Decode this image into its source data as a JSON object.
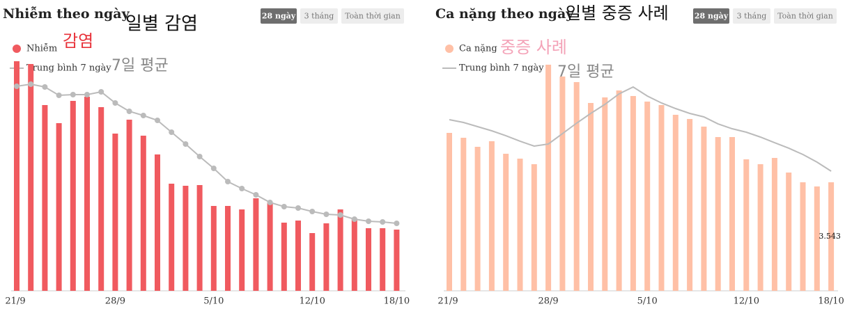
{
  "chart_data": [
    {
      "type": "bar",
      "title": "Nhiễm theo ngày",
      "annotations": [
        {
          "text": "일별 감염",
          "color": "#111111"
        },
        {
          "text": "감염",
          "color": "#e8323a"
        },
        {
          "text": "7일 평균",
          "color": "#888888"
        }
      ],
      "buttons": [
        "28 ngày",
        "3 tháng",
        "Toàn thời gian"
      ],
      "categories": [
        "21/9",
        null,
        null,
        null,
        null,
        null,
        null,
        "28/9",
        null,
        null,
        null,
        null,
        null,
        null,
        "5/10",
        null,
        null,
        null,
        null,
        null,
        null,
        "12/10",
        null,
        null,
        null,
        null,
        null,
        "18/10"
      ],
      "ylim": [
        0,
        13520
      ],
      "series": [
        {
          "name": "Nhiễm",
          "type": "bar",
          "color": "#f05a5f",
          "values": [
            13200,
            13040,
            10680,
            9640,
            10920,
            11160,
            10560,
            9040,
            9840,
            8920,
            7840,
            6160,
            6040,
            6080,
            4880,
            4880,
            4680,
            5320,
            5080,
            3920,
            4040,
            3320,
            3880,
            4680,
            4160,
            3600,
            3600,
            3520
          ]
        },
        {
          "name": "Trung bình 7 ngày",
          "type": "line",
          "color": "#bbbbbb",
          "markers": true,
          "values": [
            11760,
            11880,
            11720,
            11240,
            11280,
            11280,
            11440,
            10800,
            10320,
            10080,
            9800,
            9120,
            8440,
            7720,
            7040,
            6280,
            5880,
            5520,
            5080,
            4840,
            4760,
            4560,
            4400,
            4360,
            4120,
            4000,
            3960,
            3880
          ]
        }
      ]
    },
    {
      "type": "bar",
      "title": "Ca nặng theo ngày",
      "annotations": [
        {
          "text": "일별 중증 사례",
          "color": "#111111"
        },
        {
          "text": "중증 사례",
          "color": "#f4a3b8"
        },
        {
          "text": "7일 평균",
          "color": "#888888"
        }
      ],
      "buttons": [
        "28 ngày",
        "3 tháng",
        "Toàn thời gian"
      ],
      "categories": [
        "21/9",
        null,
        null,
        null,
        null,
        null,
        null,
        "28/9",
        null,
        null,
        null,
        null,
        null,
        null,
        "5/10",
        null,
        null,
        null,
        null,
        null,
        null,
        "12/10",
        null,
        null,
        null,
        null,
        null,
        "18/10"
      ],
      "ylim": [
        0,
        7676
      ],
      "series": [
        {
          "name": "Ca nặng",
          "type": "bar",
          "color": "#ffc0a6",
          "values": [
            5155,
            4996,
            4701,
            4883,
            4474,
            4315,
            4133,
            7381,
            6995,
            6813,
            6132,
            6313,
            6540,
            6359,
            6177,
            6064,
            5746,
            5609,
            5360,
            5019,
            5019,
            4292,
            4133,
            4338,
            3861,
            3543,
            3407,
            3543
          ],
          "value_labels": [
            null,
            null,
            null,
            null,
            null,
            null,
            null,
            null,
            null,
            null,
            null,
            null,
            null,
            null,
            null,
            null,
            null,
            null,
            null,
            null,
            null,
            null,
            null,
            null,
            null,
            null,
            null,
            "3.543"
          ]
        },
        {
          "name": "Trung bình 7 ngày",
          "type": "line",
          "color": "#bbbbbb",
          "markers": false,
          "values": [
            5587,
            5496,
            5360,
            5223,
            5064,
            4883,
            4724,
            4792,
            5132,
            5473,
            5791,
            6086,
            6427,
            6654,
            6359,
            6132,
            5950,
            5791,
            5678,
            5450,
            5291,
            5178,
            5019,
            4837,
            4656,
            4451,
            4201,
            3906
          ]
        }
      ]
    }
  ]
}
